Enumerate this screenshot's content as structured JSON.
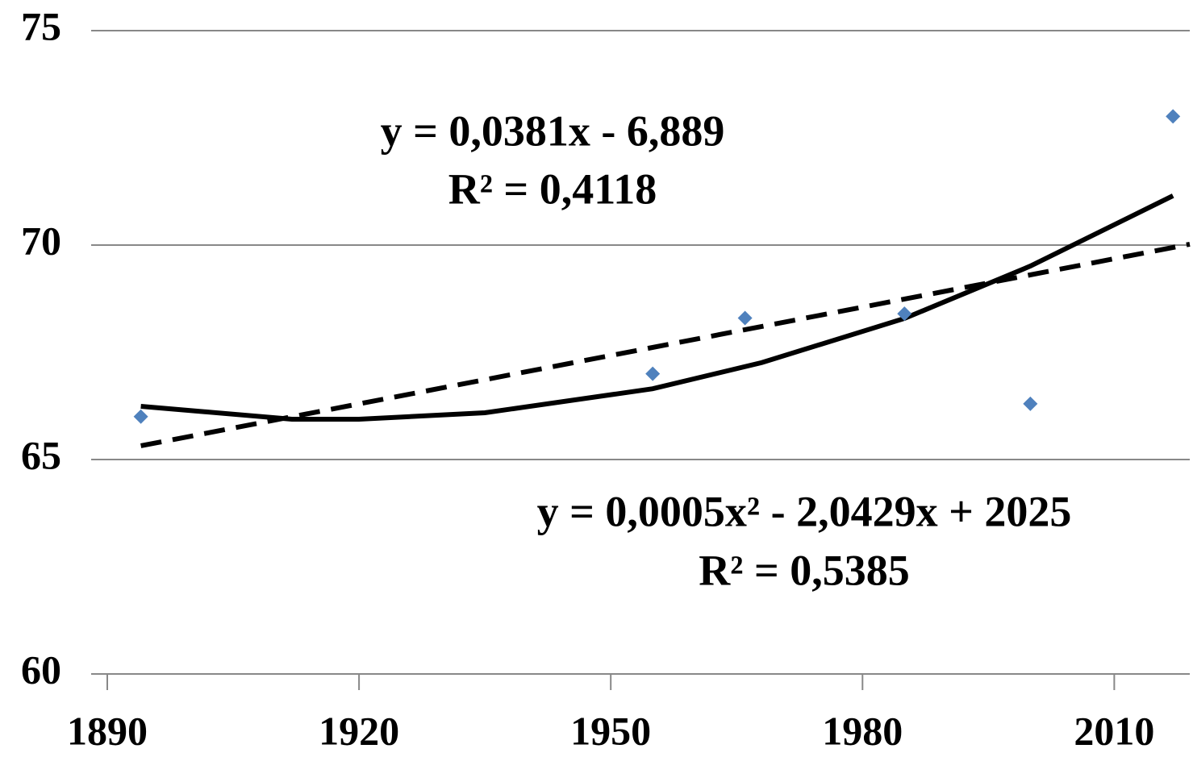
{
  "chart_data": {
    "type": "scatter",
    "x": [
      1894,
      1955,
      1966,
      1985,
      2000,
      2017
    ],
    "series": [
      {
        "color": "#4f81bd",
        "values": [
          66.0,
          67.0,
          68.3,
          68.4,
          66.3,
          73.0
        ]
      }
    ],
    "trendlines": [
      {
        "style": "dashed",
        "x": [
          1894,
          2019
        ],
        "values": [
          65.32,
          70.02
        ]
      },
      {
        "style": "solid",
        "x": [
          1894,
          1912,
          1920,
          1935,
          1955,
          1968,
          1985,
          2000,
          2017
        ],
        "values": [
          66.24,
          65.94,
          65.94,
          66.09,
          66.65,
          67.26,
          68.29,
          69.51,
          71.15
        ]
      }
    ],
    "annotations": [
      {
        "equation": "y = 0,0381x - 6,889",
        "r2": "R² = 0,4118"
      },
      {
        "equation": "y = 0,0005x² - 2,0429x + 2025",
        "r2": "R² = 0,5385"
      }
    ],
    "xlim": [
      1890,
      2019
    ],
    "ylim": [
      60,
      75
    ],
    "xticks": [
      1890,
      1920,
      1950,
      1980,
      2010
    ],
    "yticks": [
      60,
      65,
      70,
      75
    ],
    "grid": true
  }
}
